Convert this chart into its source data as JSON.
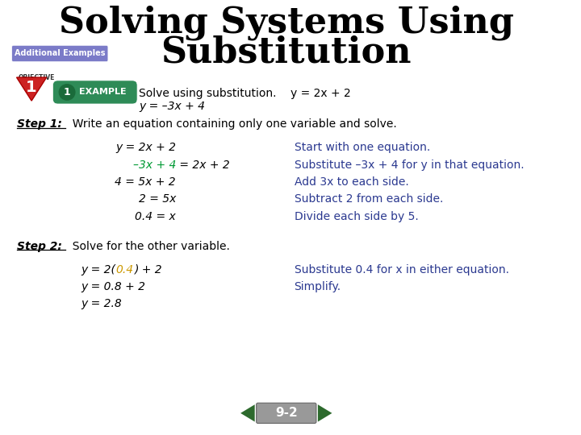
{
  "title_line1": "Solving Systems Using",
  "title_line2": "Substitution",
  "bg_color": "#ffffff",
  "title_color": "#000000",
  "title_fontsize": 32,
  "additional_examples_text": "Additional Examples",
  "additional_examples_bg": "#7b7bc8",
  "additional_examples_fg": "#ffffff",
  "objective_text": "OBJECTIVE",
  "objective_num": "1",
  "example_badge_bg": "#2e8b57",
  "example_badge_fg": "#ffffff",
  "example_text": "EXAMPLE",
  "example_num": "1",
  "problem_intro": "Solve using substitution.",
  "eq1": "y = 2x + 2",
  "eq2": "y = –3x + 4",
  "step1_label": "Step 1:",
  "step1_text": "  Write an equation containing only one variable and solve.",
  "step1_lines_left": [
    "y = 2x + 2",
    "–3x + 4 = 2x + 2",
    "4 = 5x + 2",
    "2 = 5x",
    "0.4 = x"
  ],
  "step1_lines_right": [
    "Start with one equation.",
    "Substitute –3x + 4 for y in that equation.",
    "Add 3x to each side.",
    "Subtract 2 from each side.",
    "Divide each side by 5."
  ],
  "step2_label": "Step 2:",
  "step2_text": "  Solve for the other variable.",
  "step2_lines_left": [
    "y = 2(0.4) + 2",
    "y = 0.8 + 2",
    "y = 2.8"
  ],
  "step2_lines_right": [
    "Substitute 0.4 for x in either equation.",
    "Simplify.",
    ""
  ],
  "nav_text": "9-2",
  "nav_bg": "#3a6b35",
  "nav_fg": "#ffffff",
  "blue_color": "#2b3990",
  "green_color": "#009933",
  "gold_color": "#cc9900",
  "step_color": "#000000",
  "right_col_color": "#2b3990"
}
